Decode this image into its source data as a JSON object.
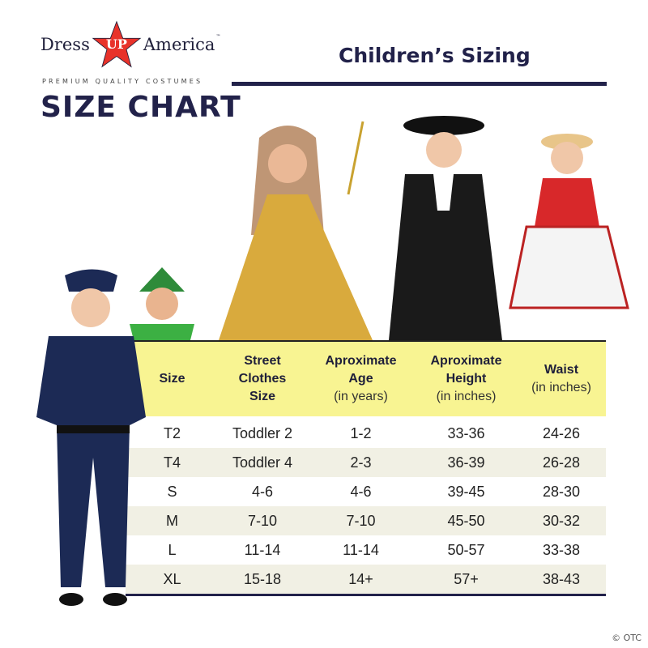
{
  "brand": {
    "left": "Dress",
    "star": "UP",
    "right": "America",
    "tm": "™",
    "tagline": "PREMIUM QUALITY COSTUMES",
    "star_color": "#e8322a"
  },
  "title": "SIZE CHART",
  "subtitle": "Children’s Sizing",
  "colors": {
    "navy": "#22224a",
    "header_yellow": "#f8f492",
    "alt_row": "#f1f0e4"
  },
  "table": {
    "headers": [
      {
        "bold": "Size",
        "sub": ""
      },
      {
        "bold": "Street Clothes Size",
        "sub": ""
      },
      {
        "bold": "Aproximate Age",
        "sub": "(in years)"
      },
      {
        "bold": "Aproximate Height",
        "sub": "(in inches)"
      },
      {
        "bold": "Waist",
        "sub": "(in inches)"
      }
    ],
    "rows": [
      [
        "T2",
        "Toddler 2",
        "1-2",
        "33-36",
        "24-26"
      ],
      [
        "T4",
        "Toddler 4",
        "2-3",
        "36-39",
        "26-28"
      ],
      [
        "S",
        "4-6",
        "4-6",
        "39-45",
        "28-30"
      ],
      [
        "M",
        "7-10",
        "7-10",
        "45-50",
        "30-32"
      ],
      [
        "L",
        "11-14",
        "11-14",
        "50-57",
        "33-38"
      ],
      [
        "XL",
        "15-18",
        "14+",
        "57+",
        "38-43"
      ]
    ]
  },
  "images": [
    "police-costume-child",
    "peter-pan-costume-child",
    "princess-gown-child",
    "colonial-costume-child",
    "cowgirl-costume-child"
  ],
  "watermark": "© OTC"
}
